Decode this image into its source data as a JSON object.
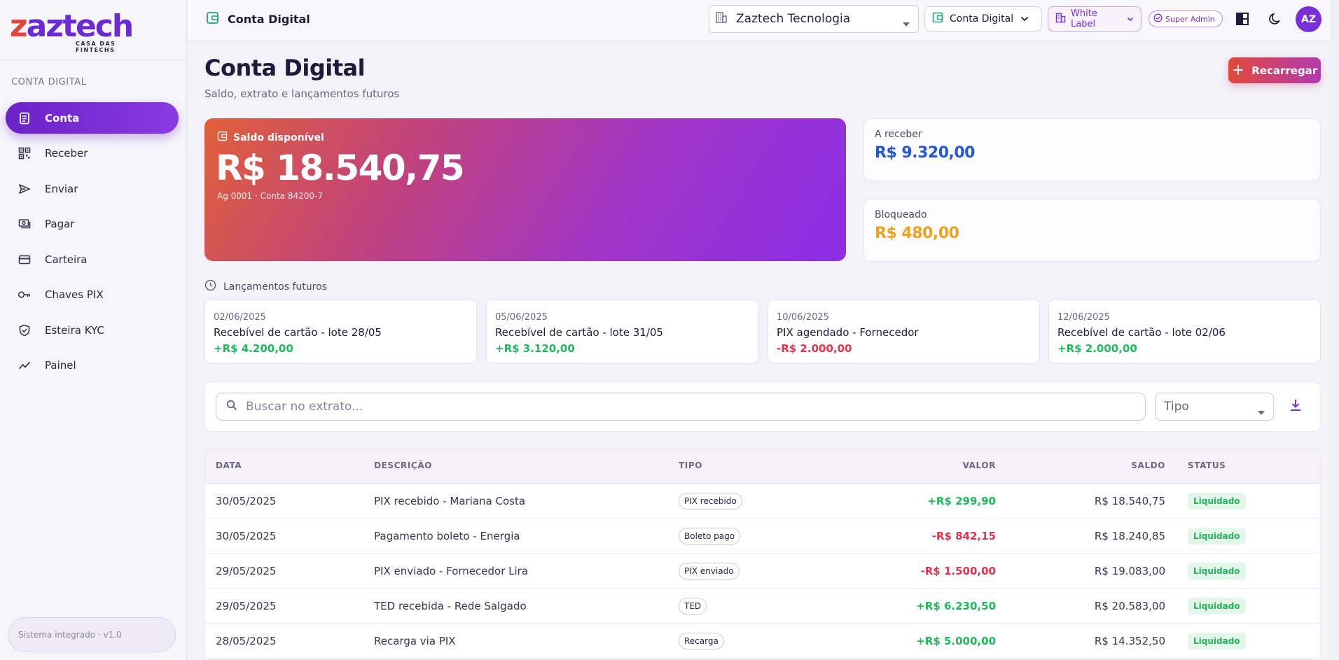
{
  "brand": {
    "logo_text_accent": "z",
    "logo_text_rest": "aztech",
    "tagline": "CASA DAS FINTECHS",
    "accent": "#7b2fd8"
  },
  "sidebar": {
    "section": "CONTA DIGITAL",
    "items": [
      {
        "label": "Conta",
        "icon": "wallet-icon"
      },
      {
        "label": "Receber",
        "icon": "qr-code-icon"
      },
      {
        "label": "Enviar",
        "icon": "send-icon"
      },
      {
        "label": "Pagar",
        "icon": "payment-icon"
      },
      {
        "label": "Carteira",
        "icon": "card-icon"
      },
      {
        "label": "Chaves PIX",
        "icon": "key-icon"
      },
      {
        "label": "Esteira KYC",
        "icon": "shield-check-icon"
      },
      {
        "label": "Painel",
        "icon": "trend-icon"
      }
    ],
    "footer": "Sistema integrado · v1.0"
  },
  "topbar": {
    "title": "Conta Digital",
    "company": "Zaztech Tecnologia",
    "product": "Conta Digital",
    "white_label": "White Label",
    "role": "Super Admin",
    "avatar_initials": "AZ"
  },
  "page": {
    "title": "Conta Digital",
    "subtitle": "Saldo, extrato e lançamentos futuros",
    "recharge_button": "Recarregar"
  },
  "balance": {
    "label": "Saldo disponível",
    "amount": "R$ 18.540,75",
    "account": "Ag 0001 · Conta 84200-7"
  },
  "summary": {
    "receivable": {
      "label": "A receber",
      "amount": "R$ 9.320,00",
      "color": "#2457d6"
    },
    "blocked": {
      "label": "Bloqueado",
      "amount": "R$ 480,00",
      "color": "#f0a21e"
    }
  },
  "future": {
    "heading": "Lançamentos futuros",
    "items": [
      {
        "date": "02/06/2025",
        "description": "Recebível de cartão - lote 28/05",
        "value": "+R$ 4.200,00",
        "positive": true
      },
      {
        "date": "05/06/2025",
        "description": "Recebível de cartão - lote 31/05",
        "value": "+R$ 3.120,00",
        "positive": true
      },
      {
        "date": "10/06/2025",
        "description": "PIX agendado - Fornecedor",
        "value": "-R$ 2.000,00",
        "positive": false
      },
      {
        "date": "12/06/2025",
        "description": "Recebível de cartão - lote 02/06",
        "value": "+R$ 2.000,00",
        "positive": true
      }
    ]
  },
  "filters": {
    "search_placeholder": "Buscar no extrato...",
    "type_placeholder": "Tipo"
  },
  "table": {
    "headers": {
      "date": "DATA",
      "description": "DESCRIÇÃO",
      "type": "TIPO",
      "value": "VALOR",
      "balance": "SALDO",
      "status": "STATUS"
    },
    "rows": [
      {
        "date": "30/05/2025",
        "description": "PIX recebido - Mariana Costa",
        "type": "PIX recebido",
        "value": "+R$ 299,90",
        "positive": true,
        "balance": "R$ 18.540,75",
        "status": "Liquidado"
      },
      {
        "date": "30/05/2025",
        "description": "Pagamento boleto - Energia",
        "type": "Boleto pago",
        "value": "-R$ 842,15",
        "positive": false,
        "balance": "R$ 18.240,85",
        "status": "Liquidado"
      },
      {
        "date": "29/05/2025",
        "description": "PIX enviado - Fornecedor Lira",
        "type": "PIX enviado",
        "value": "-R$ 1.500,00",
        "positive": false,
        "balance": "R$ 19.083,00",
        "status": "Liquidado"
      },
      {
        "date": "29/05/2025",
        "description": "TED recebida - Rede Salgado",
        "type": "TED",
        "value": "+R$ 6.230,50",
        "positive": true,
        "balance": "R$ 20.583,00",
        "status": "Liquidado"
      },
      {
        "date": "28/05/2025",
        "description": "Recarga via PIX",
        "type": "Recarga",
        "value": "+R$ 5.000,00",
        "positive": true,
        "balance": "R$ 14.352,50",
        "status": "Liquidado"
      }
    ]
  },
  "colors": {
    "positive": "#1fb85a",
    "negative": "#e2334f"
  }
}
